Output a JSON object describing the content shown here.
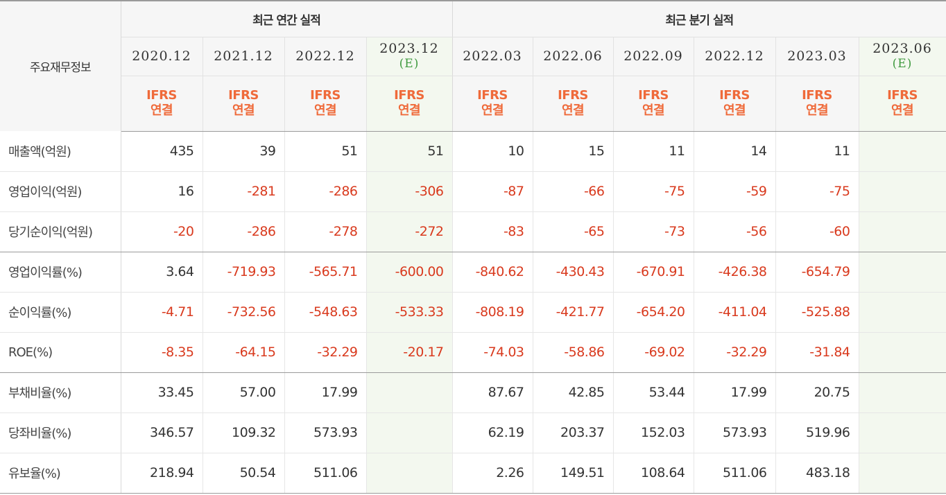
{
  "header": {
    "row_label": "주요재무정보",
    "annual_group": "최근 연간 실적",
    "quarter_group": "최근 분기 실적",
    "annual_periods": [
      {
        "period": "2020.12",
        "estimate": ""
      },
      {
        "period": "2021.12",
        "estimate": ""
      },
      {
        "period": "2022.12",
        "estimate": ""
      },
      {
        "period": "2023.12",
        "estimate": "(E)"
      }
    ],
    "quarter_periods": [
      {
        "period": "2022.03",
        "estimate": ""
      },
      {
        "period": "2022.06",
        "estimate": ""
      },
      {
        "period": "2022.09",
        "estimate": ""
      },
      {
        "period": "2022.12",
        "estimate": ""
      },
      {
        "period": "2023.03",
        "estimate": ""
      },
      {
        "period": "2023.06",
        "estimate": "(E)"
      }
    ],
    "accounting_line1": "IFRS",
    "accounting_line2": "연결"
  },
  "rows": [
    {
      "label": "매출액(억원)",
      "values": [
        "435",
        "39",
        "51",
        "51",
        "10",
        "15",
        "11",
        "14",
        "11",
        ""
      ]
    },
    {
      "label": "영업이익(억원)",
      "values": [
        "16",
        "-281",
        "-286",
        "-306",
        "-87",
        "-66",
        "-75",
        "-59",
        "-75",
        ""
      ]
    },
    {
      "label": "당기순이익(억원)",
      "values": [
        "-20",
        "-286",
        "-278",
        "-272",
        "-83",
        "-65",
        "-73",
        "-56",
        "-60",
        ""
      ]
    },
    {
      "label": "영업이익률(%)",
      "values": [
        "3.64",
        "-719.93",
        "-565.71",
        "-600.00",
        "-840.62",
        "-430.43",
        "-670.91",
        "-426.38",
        "-654.79",
        ""
      ]
    },
    {
      "label": "순이익률(%)",
      "values": [
        "-4.71",
        "-732.56",
        "-548.63",
        "-533.33",
        "-808.19",
        "-421.77",
        "-654.20",
        "-411.04",
        "-525.88",
        ""
      ]
    },
    {
      "label": "ROE(%)",
      "values": [
        "-8.35",
        "-64.15",
        "-32.29",
        "-20.17",
        "-74.03",
        "-58.86",
        "-69.02",
        "-32.29",
        "-31.84",
        ""
      ]
    },
    {
      "label": "부채비율(%)",
      "values": [
        "33.45",
        "57.00",
        "17.99",
        "",
        "87.67",
        "42.85",
        "53.44",
        "17.99",
        "20.75",
        ""
      ]
    },
    {
      "label": "당좌비율(%)",
      "values": [
        "346.57",
        "109.32",
        "573.93",
        "",
        "62.19",
        "203.37",
        "152.03",
        "573.93",
        "519.96",
        ""
      ]
    },
    {
      "label": "유보율(%)",
      "values": [
        "218.94",
        "50.54",
        "511.06",
        "",
        "2.26",
        "149.51",
        "108.64",
        "511.06",
        "483.18",
        ""
      ]
    }
  ],
  "colors": {
    "negative": "#d93a1e",
    "ifrs_label": "#ef6a3a",
    "estimate_text": "#3f9a3f",
    "estimate_column_bg": "#f3f8ef",
    "header_bg": "#f6f6f6"
  }
}
